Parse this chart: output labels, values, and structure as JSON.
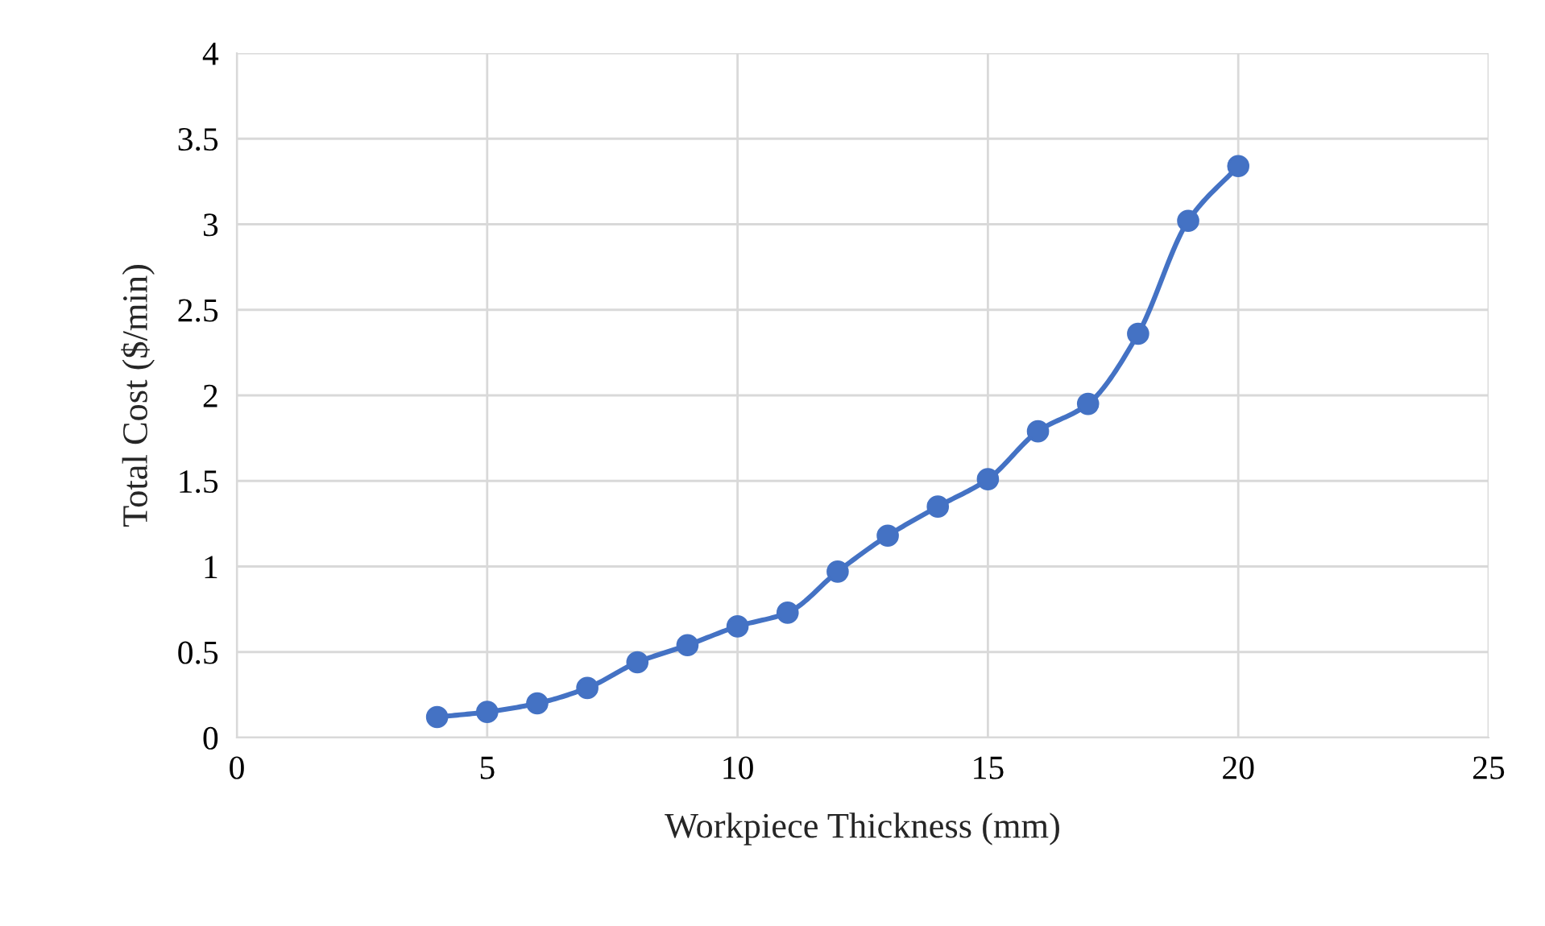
{
  "chart_data": {
    "type": "line",
    "xlabel": "Workpiece Thickness (mm)",
    "ylabel": "Total Cost ($/min)",
    "x": [
      4,
      5,
      6,
      7,
      8,
      9,
      10,
      11,
      12,
      13,
      14,
      15,
      16,
      17,
      18,
      19,
      20
    ],
    "series": [
      {
        "color": "#4472c4",
        "values": [
          0.12,
          0.15,
          0.2,
          0.29,
          0.44,
          0.54,
          0.65,
          0.73,
          0.97,
          1.18,
          1.35,
          1.51,
          1.79,
          1.95,
          2.36,
          3.02,
          3.34
        ]
      }
    ],
    "xlim": [
      0,
      25
    ],
    "xticks": [
      0,
      5,
      10,
      15,
      20,
      25
    ],
    "ylim": [
      0,
      4
    ],
    "yticks": [
      0,
      0.5,
      1,
      1.5,
      2,
      2.5,
      3,
      3.5,
      4
    ],
    "grid": true,
    "marker": "circle",
    "line_style": "solid",
    "legend": false
  }
}
